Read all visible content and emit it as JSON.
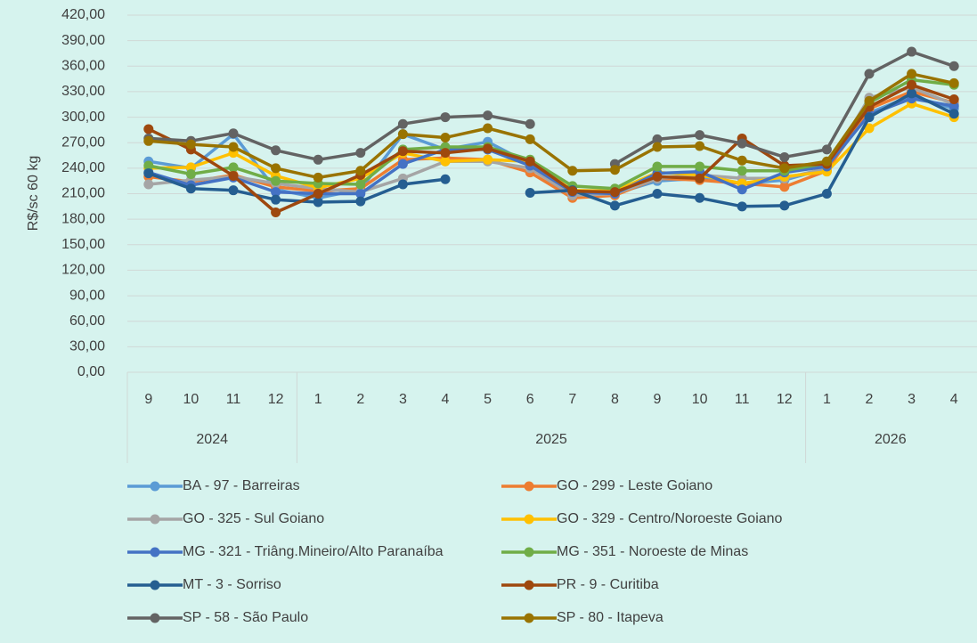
{
  "chart_data": {
    "type": "line",
    "y_label": "R$/sc 60 kg",
    "categories": [
      "9",
      "10",
      "11",
      "12",
      "1",
      "2",
      "3",
      "4",
      "5",
      "6",
      "7",
      "8",
      "9",
      "10",
      "11",
      "12",
      "1",
      "2",
      "3",
      "4"
    ],
    "category_groups": [
      {
        "label": "2024",
        "size": 4
      },
      {
        "label": "2025",
        "size": 12
      },
      {
        "label": "2026",
        "size": 4
      }
    ],
    "ylim": [
      0,
      420
    ],
    "yticks": [
      {
        "value": 0,
        "label": "0,00"
      },
      {
        "value": 30,
        "label": "30,00"
      },
      {
        "value": 60,
        "label": "60,00"
      },
      {
        "value": 90,
        "label": "90,00"
      },
      {
        "value": 120,
        "label": "120,00"
      },
      {
        "value": 150,
        "label": "150,00"
      },
      {
        "value": 180,
        "label": "180,00"
      },
      {
        "value": 210,
        "label": "210,00"
      },
      {
        "value": 240,
        "label": "240,00"
      },
      {
        "value": 270,
        "label": "270,00"
      },
      {
        "value": 300,
        "label": "300,00"
      },
      {
        "value": 330,
        "label": "330,00"
      },
      {
        "value": 360,
        "label": "360,00"
      },
      {
        "value": 390,
        "label": "390,00"
      },
      {
        "value": 420,
        "label": "420,00"
      }
    ],
    "grid": true,
    "series": [
      {
        "name": "BA - 97 - Barreiras",
        "color": "#5b9bd5",
        "values": [
          248,
          240,
          280,
          215,
          205,
          215,
          280,
          262,
          271,
          245,
          213,
          210,
          225,
          228,
          222,
          226,
          240,
          305,
          325,
          310
        ]
      },
      {
        "name": "GO - 299 - Leste Goiano",
        "color": "#ed7d31",
        "values": [
          230,
          224,
          232,
          218,
          213,
          216,
          250,
          252,
          250,
          235,
          205,
          208,
          228,
          226,
          222,
          218,
          237,
          310,
          330,
          317
        ]
      },
      {
        "name": "GO - 325 - Sul Goiano",
        "color": "#a5a5a5",
        "values": [
          221,
          226,
          230,
          222,
          216,
          212,
          228,
          248,
          248,
          240,
          208,
          210,
          228,
          232,
          228,
          228,
          240,
          323,
          335,
          315
        ]
      },
      {
        "name": "GO - 329 - Centro/Noroeste Goiano",
        "color": "#ffc000",
        "values": [
          240,
          241,
          258,
          231,
          217,
          228,
          258,
          248,
          250,
          248,
          214,
          213,
          235,
          232,
          222,
          230,
          236,
          287,
          316,
          300
        ]
      },
      {
        "name": "MG - 321 - Triâng.Mineiro/Alto Paranaíba",
        "color": "#4472c4",
        "values": [
          235,
          220,
          229,
          212,
          210,
          210,
          245,
          262,
          262,
          243,
          212,
          210,
          234,
          236,
          215,
          235,
          242,
          303,
          322,
          313
        ]
      },
      {
        "name": "MG - 351 - Noroeste de Minas",
        "color": "#70ad47",
        "values": [
          243,
          233,
          241,
          225,
          222,
          221,
          262,
          265,
          265,
          250,
          219,
          216,
          242,
          242,
          237,
          237,
          246,
          317,
          344,
          338
        ]
      },
      {
        "name": "MT - 3 - Sorriso",
        "color": "#255e91",
        "values": [
          234,
          216,
          214,
          203,
          200,
          201,
          221,
          227,
          null,
          211,
          214,
          196,
          210,
          205,
          195,
          196,
          210,
          300,
          328,
          304
        ]
      },
      {
        "name": "PR - 9 - Curitiba",
        "color": "#9e480e",
        "values": [
          286,
          262,
          231,
          188,
          210,
          232,
          260,
          258,
          263,
          248,
          213,
          212,
          230,
          228,
          275,
          243,
          245,
          312,
          338,
          321
        ]
      },
      {
        "name": "SP - 58 - São Paulo",
        "color": "#636363",
        "values": [
          275,
          272,
          281,
          261,
          250,
          258,
          292,
          300,
          302,
          292,
          null,
          245,
          274,
          279,
          269,
          253,
          262,
          351,
          377,
          360
        ]
      },
      {
        "name": "SP - 80 - Itapeva",
        "color": "#997300",
        "values": [
          272,
          268,
          265,
          240,
          229,
          237,
          280,
          276,
          287,
          274,
          237,
          238,
          265,
          266,
          249,
          240,
          248,
          319,
          351,
          340
        ]
      }
    ],
    "legend_position": "bottom"
  }
}
